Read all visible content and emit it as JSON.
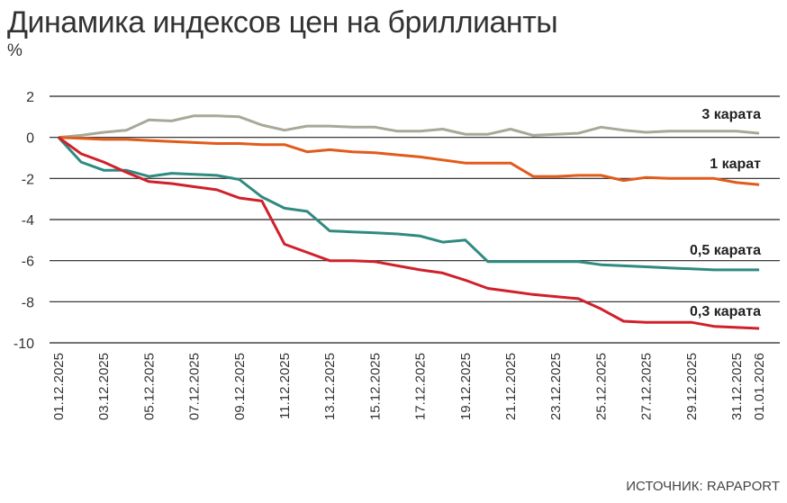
{
  "chart_data": {
    "type": "line",
    "title": "Динамика индексов цен на бриллианты",
    "ylabel": "%",
    "source": "ИСТОЧНИК: RAPAPORT",
    "ylim": [
      -10,
      2
    ],
    "yticks": [
      2,
      0,
      -2,
      -4,
      -6,
      -8,
      -10
    ],
    "xtick_labels": [
      "01.12.2025",
      "03.12.2025",
      "05.12.2025",
      "07.12.2025",
      "09.12.2025",
      "11.12.2025",
      "13.12.2025",
      "15.12.2025",
      "17.12.2025",
      "19.12.2025",
      "21.12.2025",
      "23.12.2025",
      "25.12.2025",
      "27.12.2025",
      "29.12.2025",
      "31.12.2025",
      "01.01.2026"
    ],
    "xtick_days": [
      0,
      2,
      4,
      6,
      8,
      10,
      12,
      14,
      16,
      18,
      20,
      22,
      24,
      26,
      28,
      30,
      31
    ],
    "grid": true,
    "series": [
      {
        "name": "3 карата",
        "color": "#a9a898",
        "values": [
          0,
          0.1,
          0.25,
          0.35,
          0.85,
          0.8,
          1.05,
          1.05,
          1.0,
          0.6,
          0.35,
          0.55,
          0.55,
          0.5,
          0.5,
          0.3,
          0.3,
          0.4,
          0.15,
          0.15,
          0.4,
          0.1,
          0.15,
          0.2,
          0.5,
          0.35,
          0.25,
          0.3,
          0.3,
          0.3,
          0.3,
          0.2
        ]
      },
      {
        "name": "1 карат",
        "color": "#e15b1b",
        "values": [
          0,
          -0.05,
          -0.1,
          -0.1,
          -0.15,
          -0.2,
          -0.25,
          -0.3,
          -0.3,
          -0.35,
          -0.35,
          -0.7,
          -0.6,
          -0.7,
          -0.75,
          -0.85,
          -0.95,
          -1.1,
          -1.25,
          -1.25,
          -1.25,
          -1.9,
          -1.9,
          -1.85,
          -1.85,
          -2.1,
          -1.95,
          -2.0,
          -2.0,
          -2.0,
          -2.2,
          -2.3
        ]
      },
      {
        "name": "0,5 карата",
        "color": "#2f8a80",
        "values": [
          0,
          -1.2,
          -1.6,
          -1.6,
          -1.9,
          -1.75,
          -1.8,
          -1.85,
          -2.05,
          -2.9,
          -3.45,
          -3.6,
          -4.55,
          -4.6,
          -4.65,
          -4.7,
          -4.8,
          -5.1,
          -5.0,
          -6.05,
          -6.05,
          -6.05,
          -6.05,
          -6.05,
          -6.2,
          -6.25,
          -6.3,
          -6.35,
          -6.4,
          -6.45,
          -6.45,
          -6.45
        ]
      },
      {
        "name": "0,3 карата",
        "color": "#d0202b",
        "values": [
          0,
          -0.8,
          -1.2,
          -1.7,
          -2.15,
          -2.25,
          -2.4,
          -2.55,
          -2.95,
          -3.1,
          -5.2,
          -5.6,
          -6.0,
          -6.0,
          -6.05,
          -6.25,
          -6.45,
          -6.6,
          -6.95,
          -7.35,
          -7.5,
          -7.65,
          -7.75,
          -7.85,
          -8.35,
          -8.95,
          -9.0,
          -9.0,
          -9.0,
          -9.2,
          -9.25,
          -9.3
        ]
      }
    ]
  }
}
